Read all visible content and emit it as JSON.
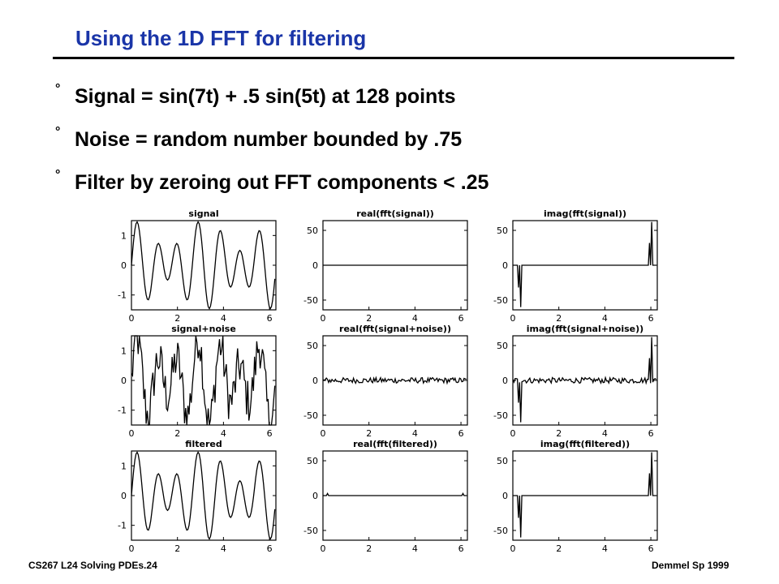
{
  "slide": {
    "title": "Using the 1D FFT for filtering",
    "bullets": [
      "Signal = sin(7t) + .5 sin(5t) at 128 points",
      "Noise = random number bounded by .75",
      "Filter by zeroing out FFT components < .25"
    ],
    "bullet_mark": "°",
    "footer_left": "CS267  L24 Solving PDEs.24",
    "footer_right": "Demmel Sp 1999"
  },
  "chart_data": [
    {
      "type": "line",
      "title": "signal",
      "x_ticks": [
        "0",
        "2",
        "4",
        "6"
      ],
      "y_ticks": [
        "1",
        "0",
        "-1"
      ],
      "xlim": [
        0,
        6.28
      ],
      "ylim": [
        -1.5,
        1.5
      ],
      "function": "sin(7t) + .5 sin(5t)",
      "points": 128
    },
    {
      "type": "line",
      "title": "real(fft(signal))",
      "x_ticks": [
        "0",
        "2",
        "4",
        "6"
      ],
      "y_ticks": [
        "50",
        "0",
        "-50"
      ],
      "xlim": [
        0,
        6.28
      ],
      "ylim": [
        -64,
        64
      ],
      "spikes": []
    },
    {
      "type": "line",
      "title": "imag(fft(signal))",
      "x_ticks": [
        "0",
        "2",
        "4",
        "6"
      ],
      "y_ticks": [
        "50",
        "0",
        "-50"
      ],
      "xlim": [
        0,
        6.28
      ],
      "ylim": [
        -64,
        64
      ],
      "spikes": [
        {
          "x": 0.25,
          "y": -32
        },
        {
          "x": 0.35,
          "y": -60
        },
        {
          "x": 5.94,
          "y": 32
        },
        {
          "x": 6.04,
          "y": 62
        }
      ]
    },
    {
      "type": "line",
      "title": "signal+noise",
      "x_ticks": [
        "0",
        "2",
        "4",
        "6"
      ],
      "y_ticks": [
        "1",
        "0",
        "-1"
      ],
      "xlim": [
        0,
        6.28
      ],
      "ylim": [
        -1.5,
        1.5
      ],
      "function": "sin(7t) + .5 sin(5t) + noise",
      "points": 128,
      "noise_bound": 0.75
    },
    {
      "type": "line",
      "title": "real(fft(signal+noise))",
      "x_ticks": [
        "0",
        "2",
        "4",
        "6"
      ],
      "y_ticks": [
        "50",
        "0",
        "-50"
      ],
      "xlim": [
        0,
        6.28
      ],
      "ylim": [
        -64,
        64
      ],
      "spikes": [],
      "noise_amplitude": 4
    },
    {
      "type": "line",
      "title": "imag(fft(signal+noise))",
      "x_ticks": [
        "0",
        "2",
        "4",
        "6"
      ],
      "y_ticks": [
        "50",
        "0",
        "-50"
      ],
      "xlim": [
        0,
        6.28
      ],
      "ylim": [
        -64,
        64
      ],
      "spikes": [
        {
          "x": 0.25,
          "y": -32
        },
        {
          "x": 0.35,
          "y": -60
        },
        {
          "x": 5.94,
          "y": 32
        },
        {
          "x": 6.04,
          "y": 62
        }
      ],
      "noise_amplitude": 4
    },
    {
      "type": "line",
      "title": "filtered",
      "x_ticks": [
        "0",
        "2",
        "4",
        "6"
      ],
      "y_ticks": [
        "1",
        "0",
        "-1"
      ],
      "xlim": [
        0,
        6.28
      ],
      "ylim": [
        -1.5,
        1.5
      ],
      "function": "sin(7t) + .5 sin(5t)",
      "points": 128
    },
    {
      "type": "line",
      "title": "real(fft(filtered))",
      "x_ticks": [
        "0",
        "2",
        "4",
        "6"
      ],
      "y_ticks": [
        "50",
        "0",
        "-50"
      ],
      "xlim": [
        0,
        6.28
      ],
      "ylim": [
        -64,
        64
      ],
      "spikes": [
        {
          "x": 0.2,
          "y": 3
        },
        {
          "x": 6.08,
          "y": 3
        }
      ]
    },
    {
      "type": "line",
      "title": "imag(fft(filtered))",
      "x_ticks": [
        "0",
        "2",
        "4",
        "6"
      ],
      "y_ticks": [
        "50",
        "0",
        "-50"
      ],
      "xlim": [
        0,
        6.28
      ],
      "ylim": [
        -64,
        64
      ],
      "spikes": [
        {
          "x": 0.25,
          "y": -32
        },
        {
          "x": 0.35,
          "y": -60
        },
        {
          "x": 5.94,
          "y": 32
        },
        {
          "x": 6.04,
          "y": 62
        }
      ]
    }
  ]
}
